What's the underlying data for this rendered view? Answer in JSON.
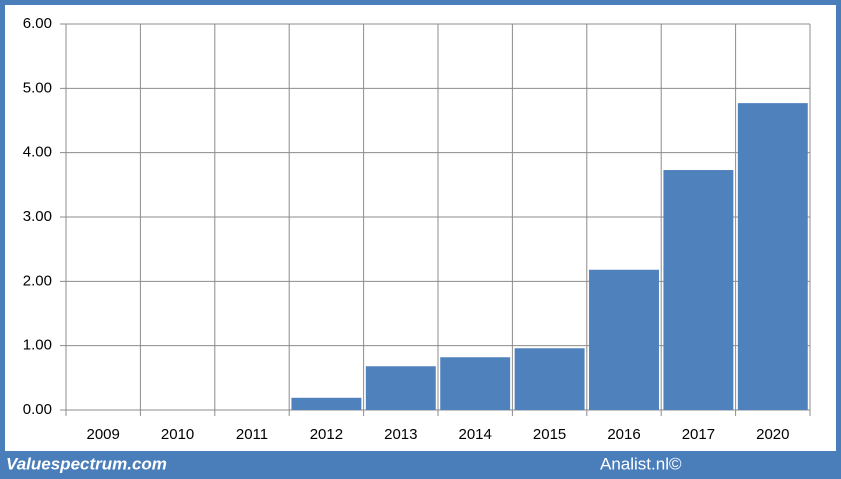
{
  "chart_data": {
    "type": "bar",
    "categories": [
      "2009",
      "2010",
      "2011",
      "2012",
      "2013",
      "2014",
      "2015",
      "2016",
      "2017",
      "2020"
    ],
    "values": [
      0,
      0,
      0,
      0.19,
      0.68,
      0.82,
      0.96,
      2.18,
      3.73,
      4.77
    ],
    "color": "#4f81bd",
    "ylim": [
      0,
      6
    ],
    "yticks": [
      {
        "value": 0,
        "label": "0.00"
      },
      {
        "value": 1,
        "label": "1.00"
      },
      {
        "value": 2,
        "label": "2.00"
      },
      {
        "value": 3,
        "label": "3.00"
      },
      {
        "value": 4,
        "label": "4.00"
      },
      {
        "value": 5,
        "label": "5.00"
      },
      {
        "value": 6,
        "label": "6.00"
      }
    ],
    "grid": true
  },
  "footer": {
    "left": "Valuespectrum.com",
    "right": "Analist.nl©"
  }
}
